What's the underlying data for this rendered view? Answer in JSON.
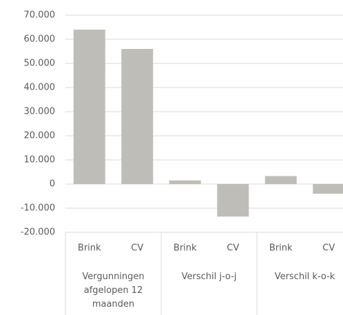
{
  "chart_data": {
    "type": "bar",
    "categories": [
      "Brink",
      "CV",
      "Brink",
      "CV",
      "Brink",
      "CV"
    ],
    "groups": [
      "Vergunningen afgelopen 12 maanden",
      "Verschil j-o-j",
      "Verschil k-o-k"
    ],
    "values": [
      64000,
      56000,
      1500,
      -13500,
      3300,
      -4000
    ],
    "color": "#bfbdb8",
    "ylim": [
      -20000,
      70000
    ],
    "yticks": [
      {
        "value": -20000,
        "label": "-20.000"
      },
      {
        "value": -10000,
        "label": "-10.000"
      },
      0,
      {
        "value": 10000,
        "label": "10.000"
      },
      {
        "value": 20000,
        "label": "20.000"
      },
      {
        "value": 30000,
        "label": "30.000"
      },
      {
        "value": 40000,
        "label": "40.000"
      },
      {
        "value": 50000,
        "label": "50.000"
      },
      {
        "value": 60000,
        "label": "60.000"
      },
      {
        "value": 70000,
        "label": "70.000"
      }
    ],
    "grid": true
  }
}
